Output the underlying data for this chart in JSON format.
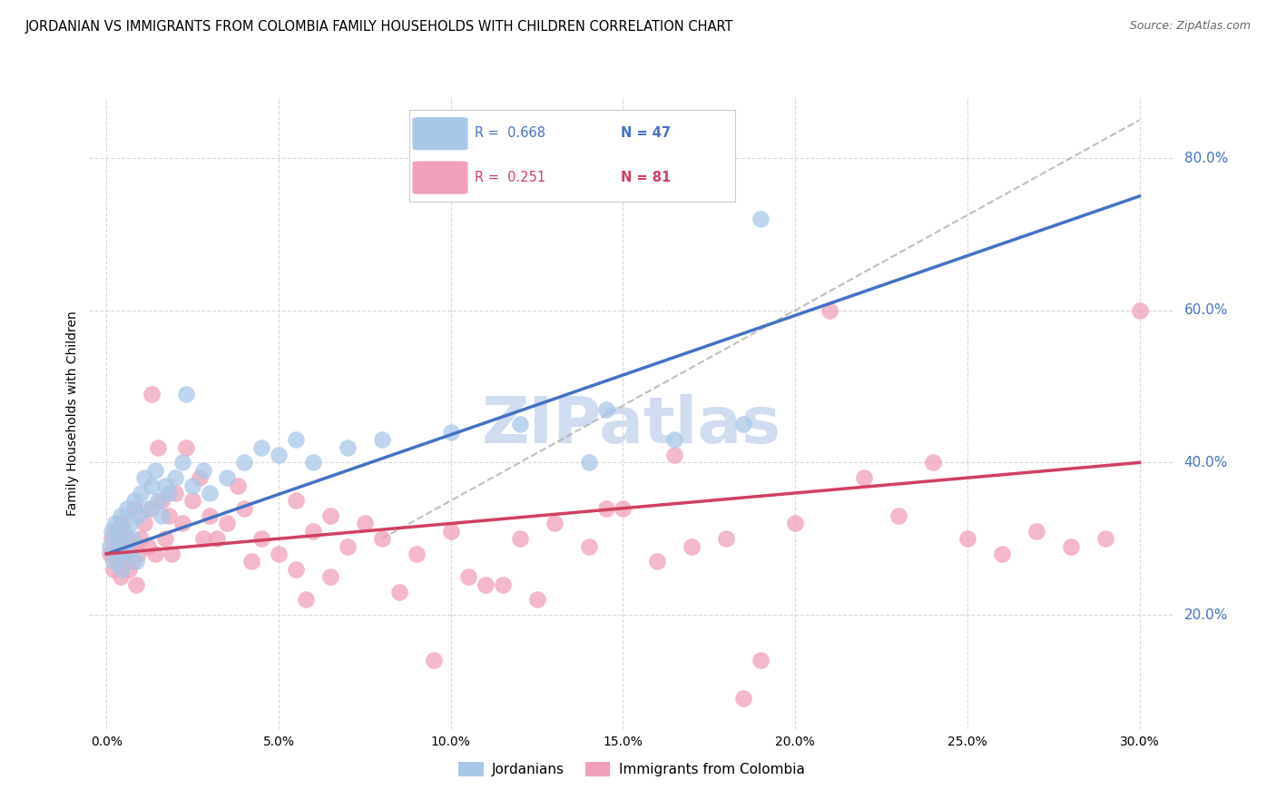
{
  "title": "JORDANIAN VS IMMIGRANTS FROM COLOMBIA FAMILY HOUSEHOLDS WITH CHILDREN CORRELATION CHART",
  "source": "Source: ZipAtlas.com",
  "ylabel": "Family Households with Children",
  "xlabel_ticks": [
    "0.0%",
    "5.0%",
    "10.0%",
    "15.0%",
    "20.0%",
    "25.0%",
    "30.0%"
  ],
  "xlabel_vals": [
    0,
    5,
    10,
    15,
    20,
    25,
    30
  ],
  "ylabel_ticks": [
    "20.0%",
    "40.0%",
    "60.0%",
    "80.0%"
  ],
  "ylabel_vals": [
    20,
    40,
    60,
    80
  ],
  "xlim": [
    -0.5,
    31.0
  ],
  "ylim": [
    5,
    88
  ],
  "legend_label1": "Jordanians",
  "legend_label2": "Immigrants from Colombia",
  "R1": "0.668",
  "N1": "47",
  "R2": "0.251",
  "N2": "81",
  "color1": "#a8c8e8",
  "color2": "#f0a0b8",
  "line_color1": "#4472c4",
  "line_color2": "#d04060",
  "ref_line_color": "#b0b0b0",
  "watermark": "ZIPatlas",
  "watermark_color": "#d0dcf0",
  "grid_color": "#d8d8d8",
  "background_color": "#ffffff",
  "title_fontsize": 10.5,
  "axis_label_fontsize": 10,
  "tick_fontsize": 10,
  "legend_fontsize": 11,
  "source_fontsize": 9,
  "jordanians_x": [
    0.1,
    0.15,
    0.2,
    0.25,
    0.3,
    0.35,
    0.4,
    0.45,
    0.5,
    0.55,
    0.6,
    0.65,
    0.7,
    0.75,
    0.8,
    0.85,
    0.9,
    1.0,
    1.1,
    1.2,
    1.3,
    1.4,
    1.5,
    1.6,
    1.7,
    1.8,
    2.0,
    2.2,
    2.5,
    2.8,
    3.0,
    3.5,
    4.0,
    4.5,
    5.0,
    5.5,
    6.0,
    7.0,
    8.0,
    10.0,
    12.0,
    14.0,
    14.5,
    16.5,
    18.5,
    19.0,
    2.3
  ],
  "jordanians_y": [
    29,
    31,
    27,
    32,
    30,
    28,
    33,
    26,
    31,
    29,
    34,
    28,
    32,
    30,
    35,
    27,
    33,
    36,
    38,
    34,
    37,
    39,
    35,
    33,
    37,
    36,
    38,
    40,
    37,
    39,
    36,
    38,
    40,
    42,
    41,
    43,
    40,
    42,
    43,
    44,
    45,
    40,
    47,
    43,
    45,
    72,
    49
  ],
  "colombia_x": [
    0.1,
    0.15,
    0.2,
    0.25,
    0.3,
    0.35,
    0.4,
    0.45,
    0.5,
    0.55,
    0.6,
    0.65,
    0.7,
    0.75,
    0.8,
    0.85,
    0.9,
    1.0,
    1.1,
    1.2,
    1.3,
    1.4,
    1.5,
    1.6,
    1.7,
    1.8,
    2.0,
    2.2,
    2.5,
    2.8,
    3.0,
    3.5,
    4.0,
    4.5,
    5.0,
    5.5,
    6.0,
    6.5,
    7.0,
    8.0,
    9.0,
    10.0,
    11.0,
    12.0,
    13.0,
    14.0,
    15.0,
    16.0,
    17.0,
    18.0,
    19.0,
    20.0,
    21.0,
    22.0,
    23.0,
    24.0,
    25.0,
    26.0,
    27.0,
    28.0,
    29.0,
    30.0,
    5.5,
    6.5,
    8.5,
    10.5,
    12.5,
    14.5,
    16.5,
    18.5,
    2.3,
    2.7,
    3.2,
    3.8,
    1.9,
    1.3,
    4.2,
    5.8,
    7.5,
    9.5,
    11.5
  ],
  "colombia_y": [
    28,
    30,
    26,
    31,
    27,
    29,
    25,
    32,
    28,
    27,
    30,
    26,
    29,
    27,
    34,
    24,
    28,
    30,
    32,
    29,
    34,
    28,
    42,
    35,
    30,
    33,
    36,
    32,
    35,
    30,
    33,
    32,
    34,
    30,
    28,
    35,
    31,
    33,
    29,
    30,
    28,
    31,
    24,
    30,
    32,
    29,
    34,
    27,
    29,
    30,
    14,
    32,
    60,
    38,
    33,
    40,
    30,
    28,
    31,
    29,
    30,
    60,
    26,
    25,
    23,
    25,
    22,
    34,
    41,
    9,
    42,
    38,
    30,
    37,
    28,
    49,
    27,
    22,
    32,
    14,
    24
  ]
}
